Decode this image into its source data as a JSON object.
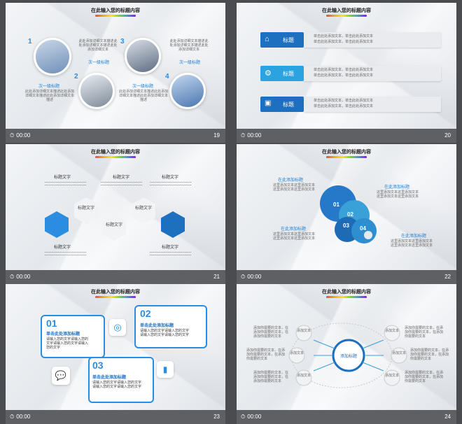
{
  "common": {
    "title": "在此输入您的标题内容",
    "time": "00:00"
  },
  "s19": {
    "num": "19",
    "items": [
      {
        "n": "1",
        "label": "",
        "text": "此处添加详细文本描述此处添加详细文本描述此处添加详细文本"
      },
      {
        "n": "2",
        "label": "次一级标题",
        "text": "此处添加详细文本描述此处添加详细文本描述此处添加详细文本"
      },
      {
        "n": "3",
        "label": "",
        "text": "此处添加详细文本描述此处添加详细文本描述此处添加详细文本"
      },
      {
        "n": "4",
        "label": "次一级标题",
        "text": "此处添加详细文本描述此处添加详细文本描述此处添加详细文本"
      }
    ],
    "label_a": "次一级标题",
    "label_b": "次一级标题",
    "text_a": "此处添加详细文本描述此处添加详细文本描述此处添加详细文本描述",
    "text_b": "此处添加详细文本描述此处添加详细文本描述此处添加详细文本描述"
  },
  "s20": {
    "num": "20",
    "rows": [
      {
        "label": "标题",
        "icon": "home-icon",
        "t1": "单击此处添加文本，单击此处添加文本",
        "t2": "单击此处添加文本，单击此处添加文本"
      },
      {
        "label": "标题",
        "icon": "gears-icon",
        "t1": "单击此处添加文本，单击此处添加文本",
        "t2": "单击此处添加文本，单击此处添加文本"
      },
      {
        "label": "标题",
        "icon": "briefcase-icon",
        "t1": "单击此处添加文本，单击此处添加文本",
        "t2": "单击此处添加文本，单击此处添加文本"
      }
    ]
  },
  "s21": {
    "num": "21",
    "heads": [
      "标题文字",
      "标题文字",
      "标题文字",
      "标题文字",
      "标题文字"
    ],
    "hex": [
      "标题文字",
      "标题文字",
      "标题文字"
    ],
    "lines": "单击此处添加文本单击此处添加文本单击此处添加文本"
  },
  "s22": {
    "num": "22",
    "labels": [
      "在此添加标题",
      "在此添加标题",
      "在此添加标题",
      "在此添加标题"
    ],
    "text": "这里添加文本这里添加文本这里添加文本这里添加文本",
    "gears": [
      "01",
      "02",
      "03",
      "04"
    ]
  },
  "s23": {
    "num": "23",
    "b1": {
      "n": "01",
      "title": "单击此处添加标题",
      "text": "请输入您的文字请输入您的文字请输入您的文字请输入您的文字"
    },
    "b2": {
      "n": "02",
      "title": "单击此处添加标题",
      "text": "请输入您的文字请输入您的文字请输入您的文字请输入您的文字"
    },
    "b3": {
      "n": "03",
      "title": "单击此处添加标题",
      "text": "请输入您的文字请输入您的文字请输入您的文字请输入您的文字"
    }
  },
  "s24": {
    "num": "24",
    "center": "添加标题",
    "nodes": [
      "添加文本",
      "添加文本",
      "添加文本",
      "添加文本",
      "添加文本",
      "添加文本"
    ],
    "text": "添加你需要的文本，在添加你需要的文本，在添加你需要的文本"
  }
}
